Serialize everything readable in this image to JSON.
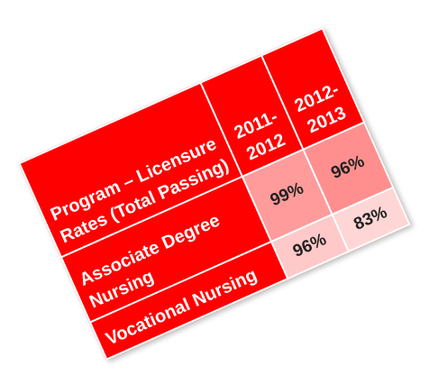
{
  "table": {
    "header": [
      "Program – Licensure Rates (Total Passing)",
      "2011-2012",
      "2012-2013"
    ],
    "rows": [
      [
        "Associate Degree Nursing",
        "99%",
        "96%"
      ],
      [
        "Vocational Nursing",
        "96%",
        "83%"
      ]
    ]
  }
}
